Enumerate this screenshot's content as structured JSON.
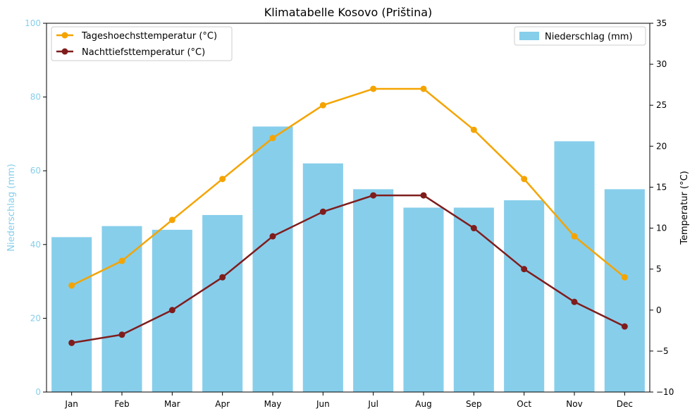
{
  "chart_data": {
    "type": "bar+line",
    "title": "Klimatabelle Kosovo (Priština)",
    "categories": [
      "Jan",
      "Feb",
      "Mar",
      "Apr",
      "May",
      "Jun",
      "Jul",
      "Aug",
      "Sep",
      "Oct",
      "Nov",
      "Dec"
    ],
    "left_axis": {
      "label": "Niederschlag (mm)",
      "ylim": [
        0,
        100
      ],
      "ticks": [
        0,
        20,
        40,
        60,
        80,
        100
      ],
      "color": "#87ceeb"
    },
    "right_axis": {
      "label": "Temperatur (°C)",
      "ylim": [
        -10,
        35
      ],
      "ticks": [
        -10,
        -5,
        0,
        5,
        10,
        15,
        20,
        25,
        30,
        35
      ],
      "color": "#000000"
    },
    "bars": {
      "name": "Niederschlag (mm)",
      "color": "#87ceeb",
      "values": [
        42,
        45,
        44,
        48,
        72,
        62,
        55,
        50,
        50,
        52,
        68,
        55
      ]
    },
    "series": [
      {
        "name": "Tageshoechsttemperatur (°C)",
        "color": "#f4a400",
        "values": [
          3,
          6,
          11,
          16,
          21,
          25,
          27,
          27,
          22,
          16,
          9,
          4
        ]
      },
      {
        "name": "Nachttiefsttemperatur (°C)",
        "color": "#7f1d1d",
        "values": [
          -4,
          -3,
          0,
          4,
          9,
          12,
          14,
          14,
          10,
          5,
          1,
          -2
        ]
      }
    ],
    "legend_left": "top-left",
    "legend_right": "top-right",
    "grid": false
  }
}
